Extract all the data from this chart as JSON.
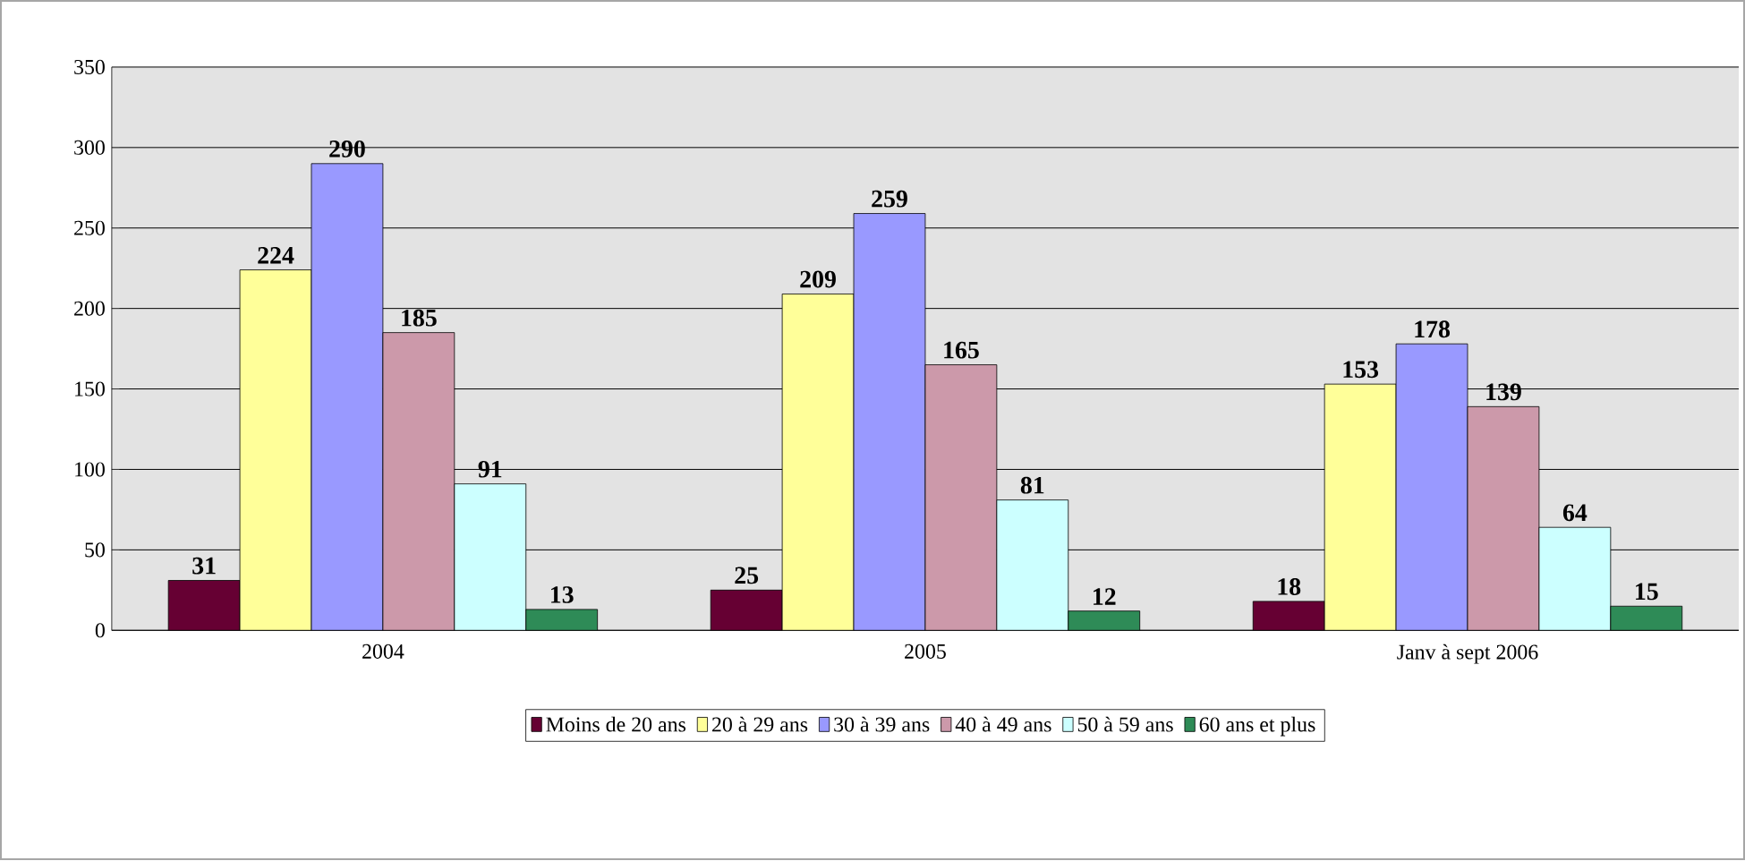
{
  "chart_data": {
    "type": "bar",
    "categories": [
      "2004",
      "2005",
      "Janv à sept 2006"
    ],
    "series": [
      {
        "name": "Moins de 20 ans",
        "color": "#660033",
        "values": [
          31,
          25,
          18
        ]
      },
      {
        "name": "20 à 29 ans",
        "color": "#ffff99",
        "values": [
          224,
          209,
          153
        ]
      },
      {
        "name": "30 à 39 ans",
        "color": "#9999ff",
        "values": [
          290,
          259,
          178
        ]
      },
      {
        "name": "40 à 49 ans",
        "color": "#cc99aa",
        "values": [
          185,
          165,
          139
        ]
      },
      {
        "name": "50 à 59 ans",
        "color": "#ccffff",
        "values": [
          91,
          81,
          64
        ]
      },
      {
        "name": "60 ans et plus",
        "color": "#2e8b57",
        "values": [
          13,
          12,
          15
        ]
      }
    ],
    "ylim": [
      0,
      350
    ],
    "yticks": [
      0,
      50,
      100,
      150,
      200,
      250,
      300,
      350
    ],
    "grid": "y",
    "legend": "bottom",
    "data_labels": true
  }
}
